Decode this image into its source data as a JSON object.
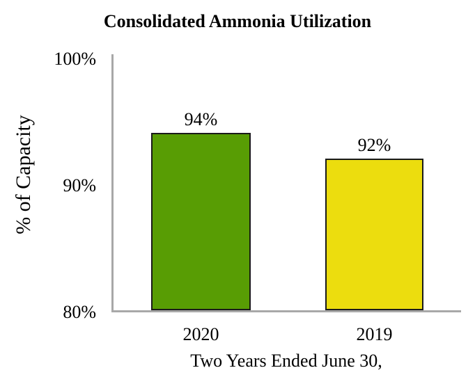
{
  "chart_data": {
    "type": "bar",
    "title": "Consolidated Ammonia Utilization",
    "categories": [
      "2020",
      "2019"
    ],
    "values": [
      94,
      92
    ],
    "bar_labels": [
      "94%",
      "92%"
    ],
    "bar_colors": [
      "#589d04",
      "#ecdd0e"
    ],
    "xlabel": "Two Years Ended June 30,",
    "ylabel": "% of Capacity",
    "ylim": [
      80,
      100
    ],
    "yticks": [
      "100%",
      "90%",
      "80%"
    ],
    "grid": false,
    "legend": false,
    "axis_color": "#a8a8a8",
    "bar_border_color": "#1a1a1a",
    "background": "#ffffff"
  }
}
